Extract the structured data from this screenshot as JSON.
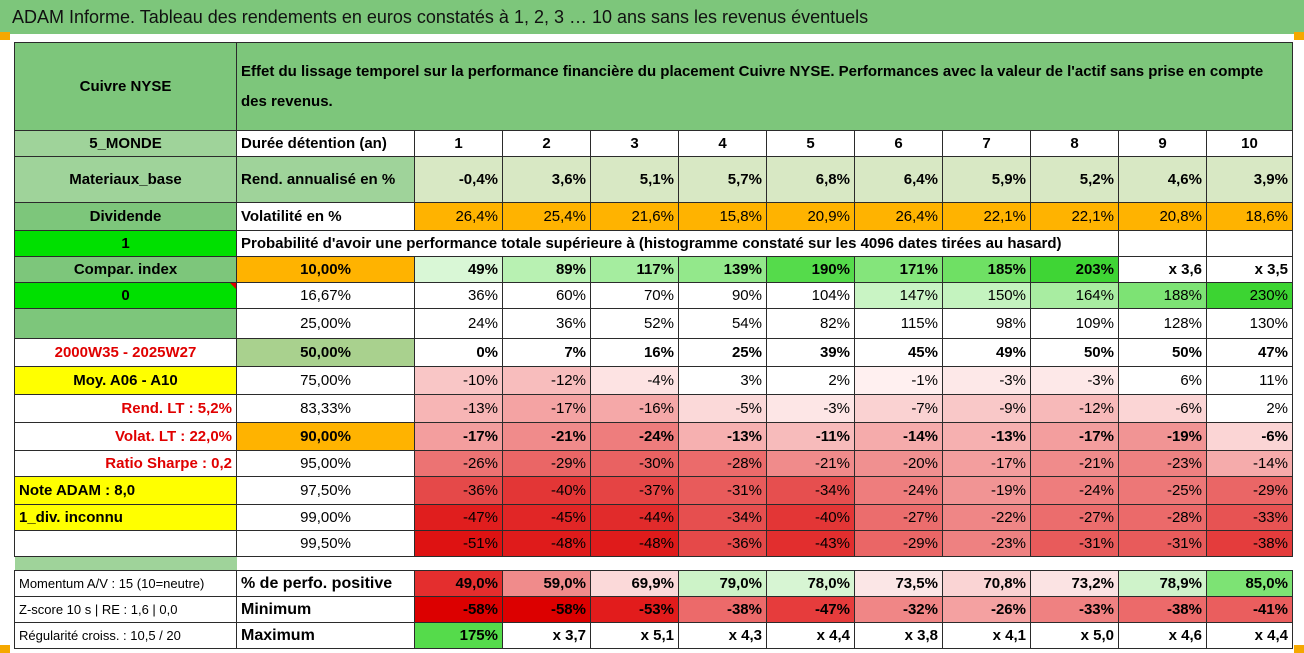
{
  "title": "ADAM Informe. Tableau des rendements en euros constatés à 1, 2, 3 … 10 ans sans les revenus éventuels",
  "asset": "Cuivre NYSE",
  "description": "Effet du lissage temporel sur la performance financière du placement Cuivre NYSE. Performances avec la valeur de l'actif sans prise en compte des revenus.",
  "left_labels": {
    "region": "5_MONDE",
    "sector": "Materiaux_base",
    "dividend": "Dividende",
    "dividend_val": "1",
    "compar": "Compar. index",
    "compar_val": "0",
    "period": "2000W35 - 2025W27",
    "moy": "Moy. A06 - A10",
    "rend_lt": "Rend. LT :   5,2%",
    "volat_lt": "Volat. LT :   22,0%",
    "sharpe": "Ratio Sharpe :   0,2",
    "note": "Note ADAM : 8,0",
    "div": "1_div. inconnu",
    "momentum": "Momentum A/V : 15 (10=neutre)",
    "zscore": "Z-score 10 s | RE : 1,6 | 0,0",
    "regularite": "Régularité croiss. : 10,5 / 20"
  },
  "header_row": {
    "label": "Durée détention (an)",
    "years": [
      "1",
      "2",
      "3",
      "4",
      "5",
      "6",
      "7",
      "8",
      "9",
      "10"
    ]
  },
  "rend_row": {
    "label": "Rend. annualisé en %",
    "values": [
      "-0,4%",
      "3,6%",
      "5,1%",
      "5,7%",
      "6,8%",
      "6,4%",
      "5,9%",
      "5,2%",
      "4,6%",
      "3,9%"
    ]
  },
  "vol_row": {
    "label": "Volatilité en %",
    "values": [
      "26,4%",
      "25,4%",
      "21,6%",
      "15,8%",
      "20,9%",
      "26,4%",
      "22,1%",
      "22,1%",
      "20,8%",
      "18,6%"
    ]
  },
  "prob_title": "Probabilité d'avoir une performance totale supérieure à (histogramme constaté sur les 4096 dates tirées au hasard)",
  "quantile_rows": [
    {
      "q": "10,00%",
      "values": [
        "49%",
        "89%",
        "117%",
        "139%",
        "190%",
        "171%",
        "185%",
        "203%",
        "x 3,6",
        "x 3,5"
      ],
      "colors": [
        "#d9f7d6",
        "#b8f1b2",
        "#a5ed9f",
        "#93e88b",
        "#55db4b",
        "#84e57b",
        "#6fe064",
        "#3fd535",
        "#ffffff",
        "#ffffff"
      ],
      "bold": true,
      "qbg": "#ffb300"
    },
    {
      "q": "16,67%",
      "values": [
        "36%",
        "60%",
        "70%",
        "90%",
        "104%",
        "147%",
        "150%",
        "164%",
        "188%",
        "230%"
      ],
      "colors": [
        "#ffffff",
        "#ffffff",
        "#ffffff",
        "#ffffff",
        "#ffffff",
        "#c9f4c4",
        "#c4f3bf",
        "#a8ed a1",
        "#7de374",
        "#3cd432"
      ],
      "bold": false,
      "qbg": "#ffffff"
    },
    {
      "q": "25,00%",
      "values": [
        "24%",
        "36%",
        "52%",
        "54%",
        "82%",
        "115%",
        "98%",
        "109%",
        "128%",
        "130%"
      ],
      "colors": [
        "#ffffff",
        "#ffffff",
        "#ffffff",
        "#ffffff",
        "#ffffff",
        "#ffffff",
        "#ffffff",
        "#ffffff",
        "#ffffff",
        "#ffffff"
      ],
      "bold": false,
      "qbg": "#ffffff"
    },
    {
      "q": "50,00%",
      "values": [
        "0%",
        "7%",
        "16%",
        "25%",
        "39%",
        "45%",
        "49%",
        "50%",
        "50%",
        "47%"
      ],
      "colors": [
        "#ffffff",
        "#ffffff",
        "#ffffff",
        "#ffffff",
        "#ffffff",
        "#ffffff",
        "#ffffff",
        "#ffffff",
        "#ffffff",
        "#ffffff"
      ],
      "bold": true,
      "qbg": "#a9d18e",
      "big": true
    },
    {
      "q": "75,00%",
      "values": [
        "-10%",
        "-12%",
        "-4%",
        "3%",
        "2%",
        "-1%",
        "-3%",
        "-3%",
        "6%",
        "11%"
      ],
      "colors": [
        "#f9c6c6",
        "#f8bdbd",
        "#fde3e3",
        "#ffffff",
        "#ffffff",
        "#fff0f0",
        "#fde8e8",
        "#fde8e8",
        "#ffffff",
        "#ffffff"
      ],
      "bold": false,
      "qbg": "#ffffff"
    },
    {
      "q": "83,33%",
      "values": [
        "-13%",
        "-17%",
        "-16%",
        "-5%",
        "-3%",
        "-7%",
        "-9%",
        "-12%",
        "-6%",
        "2%"
      ],
      "colors": [
        "#f7b5b5",
        "#f4a3a3",
        "#f5a8a8",
        "#fbd9d9",
        "#fde6e6",
        "#fad2d2",
        "#f9c8c8",
        "#f7b9b9",
        "#fbd5d5",
        "#ffffff"
      ],
      "bold": false,
      "qbg": "#ffffff"
    },
    {
      "q": "90,00%",
      "values": [
        "-17%",
        "-21%",
        "-24%",
        "-13%",
        "-11%",
        "-14%",
        "-13%",
        "-17%",
        "-19%",
        "-6%"
      ],
      "colors": [
        "#f39e9e",
        "#f08b8b",
        "#ee7d7d",
        "#f6b0b0",
        "#f7bbbb",
        "#f5abab",
        "#f6b0b0",
        "#f39e9e",
        "#f19494",
        "#fbd5d5"
      ],
      "bold": true,
      "qbg": "#ffb300"
    },
    {
      "q": "95,00%",
      "values": [
        "-26%",
        "-29%",
        "-30%",
        "-28%",
        "-21%",
        "-20%",
        "-17%",
        "-21%",
        "-23%",
        "-14%"
      ],
      "colors": [
        "#ec7373",
        "#ea6666",
        "#e96262",
        "#eb6b6b",
        "#f08b8b",
        "#f09090",
        "#f39e9e",
        "#f08b8b",
        "#ee8181",
        "#f5abab"
      ],
      "bold": false,
      "qbg": "#ffffff"
    },
    {
      "q": "97,50%",
      "values": [
        "-36%",
        "-40%",
        "-37%",
        "-31%",
        "-34%",
        "-24%",
        "-19%",
        "-24%",
        "-25%",
        "-29%"
      ],
      "colors": [
        "#e54949",
        "#e33636",
        "#e54444",
        "#e85b5b",
        "#e64f4f",
        "#ee7d7d",
        "#f19494",
        "#ee7d7d",
        "#ed7777",
        "#ea6666"
      ],
      "bold": false,
      "qbg": "#ffffff"
    },
    {
      "q": "99,00%",
      "values": [
        "-47%",
        "-45%",
        "-44%",
        "-34%",
        "-40%",
        "-27%",
        "-22%",
        "-27%",
        "-28%",
        "-33%"
      ],
      "colors": [
        "#e01e1e",
        "#e12626",
        "#e12b2b",
        "#e64f4f",
        "#e33636",
        "#eb6d6d",
        "#ef8686",
        "#eb6d6d",
        "#eb6a6a",
        "#e75353"
      ],
      "bold": false,
      "qbg": "#ffffff"
    },
    {
      "q": "99,50%",
      "values": [
        "-51%",
        "-48%",
        "-48%",
        "-36%",
        "-43%",
        "-29%",
        "-23%",
        "-31%",
        "-31%",
        "-38%"
      ],
      "colors": [
        "#de1212",
        "#df1b1b",
        "#df1b1b",
        "#e54949",
        "#e22e2e",
        "#ea6666",
        "#ee8181",
        "#e85b5b",
        "#e85b5b",
        "#e43c3c"
      ],
      "bold": false,
      "qbg": "#ffffff"
    }
  ],
  "bottom_rows": [
    {
      "label": "% de perfo. positive",
      "values": [
        "49,0%",
        "59,0%",
        "69,9%",
        "79,0%",
        "78,0%",
        "73,5%",
        "70,8%",
        "73,2%",
        "78,9%",
        "85,0%"
      ],
      "colors": [
        "#e42e2e",
        "#f08b8b",
        "#fbd9d9",
        "#cdf3c8",
        "#d7f5d3",
        "#fbe6e6",
        "#fad4d4",
        "#fbe3e3",
        "#cff3ca",
        "#7de374"
      ]
    },
    {
      "label": "Minimum",
      "values": [
        "-58%",
        "-58%",
        "-53%",
        "-38%",
        "-47%",
        "-32%",
        "-26%",
        "-33%",
        "-38%",
        "-41%"
      ],
      "colors": [
        "#dc0000",
        "#dc0000",
        "#e21c1c",
        "#ec6a6a",
        "#e63c3c",
        "#f08686",
        "#f4a1a1",
        "#ef8181",
        "#ec6a6a",
        "#ea5e5e"
      ]
    },
    {
      "label": "Maximum",
      "values": [
        "175%",
        "x 3,7",
        "x 5,1",
        "x 4,3",
        "x 4,4",
        "x 3,8",
        "x 4,1",
        "x 5,0",
        "x 4,6",
        "x 4,4"
      ],
      "colors": [
        "#55db4b",
        "#ffffff",
        "#ffffff",
        "#ffffff",
        "#ffffff",
        "#ffffff",
        "#ffffff",
        "#ffffff",
        "#ffffff",
        "#ffffff"
      ]
    }
  ]
}
